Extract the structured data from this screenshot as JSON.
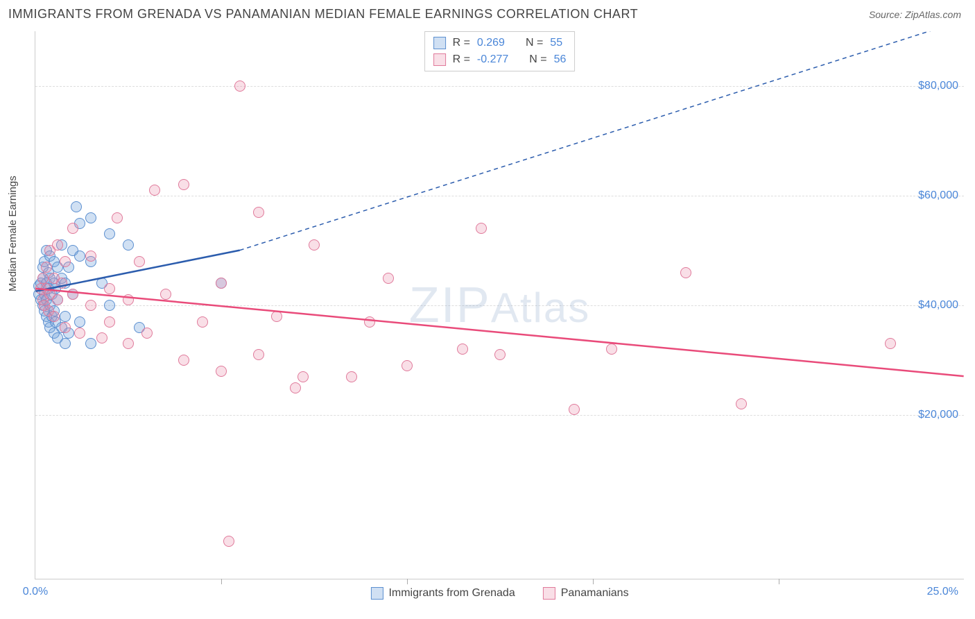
{
  "header": {
    "title": "IMMIGRANTS FROM GRENADA VS PANAMANIAN MEDIAN FEMALE EARNINGS CORRELATION CHART",
    "source_prefix": "Source: ",
    "source": "ZipAtlas.com"
  },
  "chart": {
    "type": "scatter",
    "y_axis_label": "Median Female Earnings",
    "xlim": [
      0,
      25
    ],
    "ylim": [
      -10000,
      90000
    ],
    "x_tick_left": "0.0%",
    "x_tick_right": "25.0%",
    "y_ticks": [
      {
        "val": 20000,
        "label": "$20,000"
      },
      {
        "val": 40000,
        "label": "$40,000"
      },
      {
        "val": 60000,
        "label": "$60,000"
      },
      {
        "val": 80000,
        "label": "$80,000"
      }
    ],
    "x_major_ticks": [
      5,
      10,
      15,
      20
    ],
    "background_color": "#ffffff",
    "grid_color": "#dddddd",
    "watermark": {
      "part1": "ZIP",
      "part2": "Atlas"
    },
    "series": [
      {
        "name": "Immigrants from Grenada",
        "fill": "rgba(120,165,220,0.35)",
        "stroke": "#5b8fd0",
        "line_color": "#2b5cad",
        "r_label": "R =",
        "r_value": "0.269",
        "n_label": "N =",
        "n_value": "55",
        "trend": {
          "x1": 0,
          "y1": 42500,
          "x2": 5.5,
          "y2": 50000,
          "ext_x2": 25,
          "ext_y2": 92000
        },
        "points": [
          [
            0.1,
            42000
          ],
          [
            0.1,
            43500
          ],
          [
            0.15,
            41000
          ],
          [
            0.15,
            44000
          ],
          [
            0.2,
            40000
          ],
          [
            0.2,
            45000
          ],
          [
            0.2,
            47000
          ],
          [
            0.25,
            39000
          ],
          [
            0.25,
            42000
          ],
          [
            0.25,
            48000
          ],
          [
            0.3,
            38000
          ],
          [
            0.3,
            41000
          ],
          [
            0.3,
            44000
          ],
          [
            0.3,
            50000
          ],
          [
            0.35,
            37000
          ],
          [
            0.35,
            43000
          ],
          [
            0.35,
            46000
          ],
          [
            0.4,
            36000
          ],
          [
            0.4,
            40000
          ],
          [
            0.4,
            45000
          ],
          [
            0.4,
            49000
          ],
          [
            0.45,
            38000
          ],
          [
            0.45,
            42000
          ],
          [
            0.5,
            35000
          ],
          [
            0.5,
            39000
          ],
          [
            0.5,
            44000
          ],
          [
            0.5,
            48000
          ],
          [
            0.55,
            37000
          ],
          [
            0.55,
            43000
          ],
          [
            0.6,
            34000
          ],
          [
            0.6,
            41000
          ],
          [
            0.6,
            47000
          ],
          [
            0.7,
            36000
          ],
          [
            0.7,
            45000
          ],
          [
            0.7,
            51000
          ],
          [
            0.8,
            33000
          ],
          [
            0.8,
            38000
          ],
          [
            0.8,
            44000
          ],
          [
            0.9,
            35000
          ],
          [
            0.9,
            47000
          ],
          [
            1.0,
            42000
          ],
          [
            1.0,
            50000
          ],
          [
            1.1,
            58000
          ],
          [
            1.2,
            37000
          ],
          [
            1.2,
            49000
          ],
          [
            1.2,
            55000
          ],
          [
            1.5,
            33000
          ],
          [
            1.5,
            48000
          ],
          [
            1.5,
            56000
          ],
          [
            1.8,
            44000
          ],
          [
            2.0,
            40000
          ],
          [
            2.0,
            53000
          ],
          [
            2.5,
            51000
          ],
          [
            2.8,
            36000
          ],
          [
            5.0,
            44000
          ]
        ]
      },
      {
        "name": "Panamanians",
        "fill": "rgba(235,140,170,0.28)",
        "stroke": "#e07a9b",
        "line_color": "#e94b7a",
        "r_label": "R =",
        "r_value": "-0.277",
        "n_label": "N =",
        "n_value": "56",
        "trend": {
          "x1": 0,
          "y1": 43000,
          "x2": 25,
          "y2": 27000
        },
        "points": [
          [
            0.15,
            43000
          ],
          [
            0.2,
            41000
          ],
          [
            0.2,
            45000
          ],
          [
            0.25,
            40000
          ],
          [
            0.3,
            43000
          ],
          [
            0.3,
            47000
          ],
          [
            0.35,
            39000
          ],
          [
            0.4,
            42000
          ],
          [
            0.4,
            50000
          ],
          [
            0.5,
            38000
          ],
          [
            0.5,
            45000
          ],
          [
            0.6,
            41000
          ],
          [
            0.6,
            51000
          ],
          [
            0.7,
            44000
          ],
          [
            0.8,
            36000
          ],
          [
            0.8,
            48000
          ],
          [
            1.0,
            42000
          ],
          [
            1.0,
            54000
          ],
          [
            1.2,
            35000
          ],
          [
            1.5,
            40000
          ],
          [
            1.5,
            49000
          ],
          [
            1.8,
            34000
          ],
          [
            2.0,
            37000
          ],
          [
            2.0,
            43000
          ],
          [
            2.2,
            56000
          ],
          [
            2.5,
            33000
          ],
          [
            2.5,
            41000
          ],
          [
            2.8,
            48000
          ],
          [
            3.0,
            35000
          ],
          [
            3.2,
            61000
          ],
          [
            3.5,
            42000
          ],
          [
            4.0,
            30000
          ],
          [
            4.0,
            62000
          ],
          [
            4.5,
            37000
          ],
          [
            5.0,
            28000
          ],
          [
            5.0,
            44000
          ],
          [
            5.2,
            -3000
          ],
          [
            5.5,
            80000
          ],
          [
            6.0,
            31000
          ],
          [
            6.0,
            57000
          ],
          [
            6.5,
            38000
          ],
          [
            7.0,
            25000
          ],
          [
            7.2,
            27000
          ],
          [
            7.5,
            51000
          ],
          [
            8.5,
            27000
          ],
          [
            9.0,
            37000
          ],
          [
            9.5,
            45000
          ],
          [
            10.0,
            29000
          ],
          [
            11.5,
            32000
          ],
          [
            12.0,
            54000
          ],
          [
            12.5,
            31000
          ],
          [
            14.5,
            21000
          ],
          [
            15.5,
            32000
          ],
          [
            17.5,
            46000
          ],
          [
            19.0,
            22000
          ],
          [
            23.0,
            33000
          ]
        ]
      }
    ],
    "bottom_legend": [
      {
        "swatch_fill": "rgba(120,165,220,0.35)",
        "swatch_stroke": "#5b8fd0",
        "label": "Immigrants from Grenada"
      },
      {
        "swatch_fill": "rgba(235,140,170,0.28)",
        "swatch_stroke": "#e07a9b",
        "label": "Panamanians"
      }
    ]
  }
}
